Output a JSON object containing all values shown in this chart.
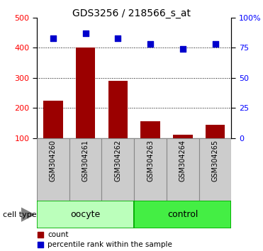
{
  "title": "GDS3256 / 218566_s_at",
  "categories": [
    "GSM304260",
    "GSM304261",
    "GSM304262",
    "GSM304263",
    "GSM304264",
    "GSM304265"
  ],
  "bar_values": [
    225,
    400,
    290,
    155,
    110,
    145
  ],
  "percentile_values": [
    83,
    87,
    83,
    78,
    74,
    78
  ],
  "bar_color": "#9B0000",
  "percentile_color": "#0000CC",
  "bar_bottom": 100,
  "ylim_left": [
    100,
    500
  ],
  "ylim_right": [
    0,
    100
  ],
  "yticks_left": [
    100,
    200,
    300,
    400,
    500
  ],
  "yticks_right": [
    0,
    25,
    50,
    75,
    100
  ],
  "yticklabels_right": [
    "0",
    "25",
    "50",
    "75",
    "100%"
  ],
  "grid_values": [
    200,
    300,
    400
  ],
  "oocyte_color": "#BBFFBB",
  "control_color": "#44EE44",
  "cell_border_color": "#00AA00",
  "tick_area_color": "#CCCCCC",
  "tick_border_color": "#888888",
  "legend_count_label": "count",
  "legend_pct_label": "percentile rank within the sample",
  "cell_type_label": "cell type"
}
